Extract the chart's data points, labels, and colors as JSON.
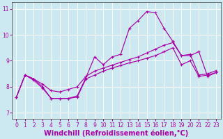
{
  "background_color": "#cce8f0",
  "line_color": "#aa00aa",
  "grid_color": "#ffffff",
  "xlabel": "Windchill (Refroidissement éolien,°C)",
  "xlabel_fontsize": 7,
  "tick_fontsize": 5.5,
  "xlim": [
    -0.5,
    23.5
  ],
  "ylim": [
    6.75,
    11.25
  ],
  "yticks": [
    7,
    8,
    9,
    10,
    11
  ],
  "xticks": [
    0,
    1,
    2,
    3,
    4,
    5,
    6,
    7,
    8,
    9,
    10,
    11,
    12,
    13,
    14,
    15,
    16,
    17,
    18,
    19,
    20,
    21,
    22,
    23
  ],
  "line_spiky_x": [
    0,
    1,
    2,
    3,
    4,
    5,
    6,
    7,
    8,
    9,
    10,
    11,
    12,
    13,
    14,
    15,
    16,
    17,
    18,
    19,
    20,
    21,
    22,
    23
  ],
  "line_spiky_y": [
    7.6,
    8.45,
    8.3,
    8.0,
    7.55,
    7.55,
    7.55,
    7.65,
    8.35,
    9.15,
    8.85,
    9.15,
    9.25,
    10.25,
    10.55,
    10.9,
    10.85,
    10.25,
    9.75,
    9.2,
    9.2,
    9.35,
    8.4,
    8.55
  ],
  "line_smooth_x": [
    0,
    1,
    2,
    3,
    4,
    5,
    6,
    7,
    8,
    9,
    10,
    11,
    12,
    13,
    14,
    15,
    16,
    17,
    18,
    19,
    20,
    21,
    22,
    23
  ],
  "line_smooth_y": [
    7.6,
    8.45,
    8.3,
    8.1,
    7.85,
    7.8,
    7.9,
    8.0,
    8.4,
    8.6,
    8.72,
    8.83,
    8.94,
    9.05,
    9.15,
    9.3,
    9.45,
    9.6,
    9.7,
    9.2,
    9.25,
    8.45,
    8.5,
    8.62
  ],
  "line_bottom_x": [
    0,
    1,
    2,
    3,
    4,
    5,
    6,
    7,
    8,
    9,
    10,
    11,
    12,
    13,
    14,
    15,
    16,
    17,
    18,
    19,
    20,
    21,
    22,
    23
  ],
  "line_bottom_y": [
    7.6,
    8.45,
    8.25,
    7.95,
    7.55,
    7.55,
    7.55,
    7.6,
    8.3,
    8.45,
    8.6,
    8.72,
    8.82,
    8.92,
    9.0,
    9.1,
    9.2,
    9.35,
    9.5,
    8.85,
    9.0,
    8.4,
    8.45,
    8.55
  ]
}
